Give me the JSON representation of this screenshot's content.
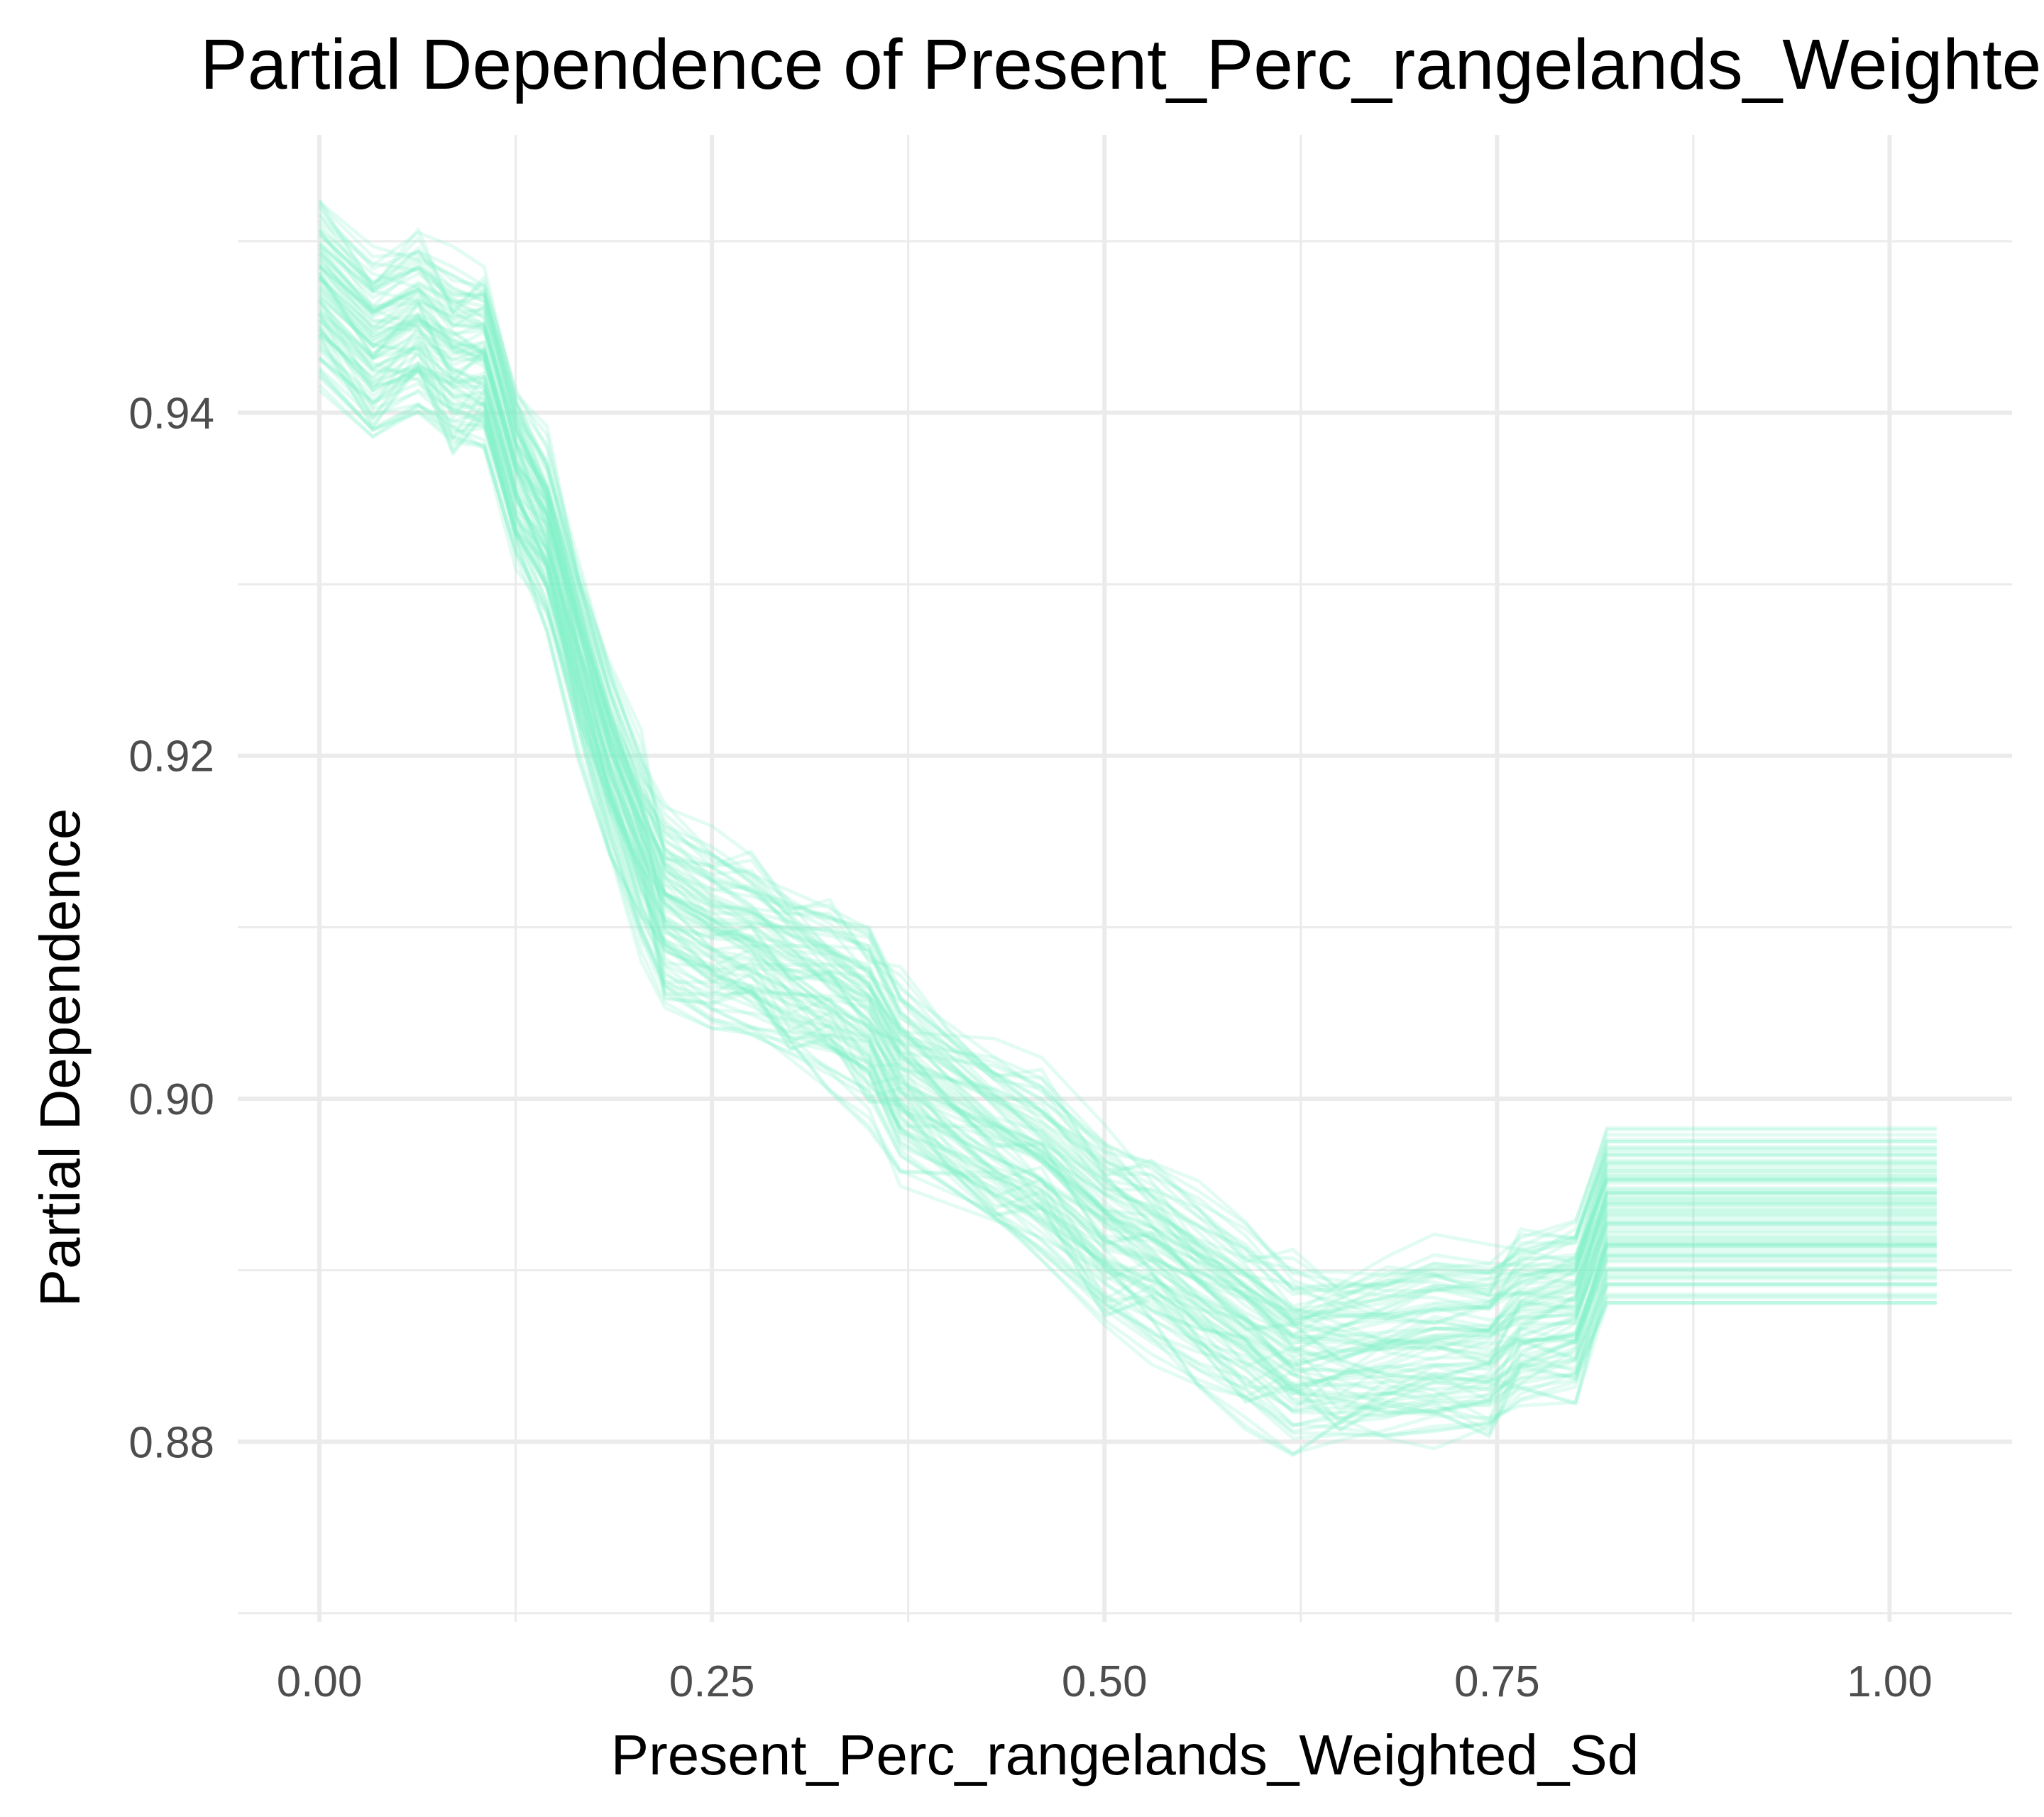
{
  "chart_data": {
    "type": "line",
    "title": "Partial Dependence of Present_Perc_rangelands_Weighted_Sd",
    "xlabel": "Present_Perc_rangelands_Weighted_Sd",
    "ylabel": "Partial Dependence",
    "xlim": [
      -0.052,
      1.078
    ],
    "ylim": [
      0.8695,
      0.9562
    ],
    "x_ticks": [
      "0.00",
      "0.25",
      "0.50",
      "0.75",
      "1.00"
    ],
    "x_tick_values": [
      0,
      0.25,
      0.5,
      0.75,
      1.0
    ],
    "y_ticks": [
      "0.88",
      "0.90",
      "0.92",
      "0.94"
    ],
    "y_tick_values": [
      0.88,
      0.9,
      0.92,
      0.94
    ],
    "grid": true,
    "line_color": "#7ff0c8",
    "line_opacity": 0.22,
    "n_curves": 90,
    "x": [
      0.0,
      0.034,
      0.063,
      0.085,
      0.105,
      0.125,
      0.145,
      0.165,
      0.185,
      0.205,
      0.22,
      0.25,
      0.275,
      0.3,
      0.325,
      0.35,
      0.37,
      0.4,
      0.43,
      0.46,
      0.5,
      0.53,
      0.56,
      0.59,
      0.62,
      0.65,
      0.68,
      0.71,
      0.745,
      0.765,
      0.8,
      0.82,
      1.03
    ],
    "mean_curve": [
      0.947,
      0.9435,
      0.9445,
      0.9428,
      0.9425,
      0.9365,
      0.933,
      0.9265,
      0.92,
      0.9145,
      0.911,
      0.909,
      0.9082,
      0.9072,
      0.9062,
      0.905,
      0.9015,
      0.8995,
      0.8975,
      0.8955,
      0.8925,
      0.891,
      0.889,
      0.8875,
      0.885,
      0.885,
      0.8848,
      0.8852,
      0.8855,
      0.887,
      0.888,
      0.893,
      0.893
    ],
    "curve_offsets": [
      -0.0045,
      -0.004,
      -0.0035,
      -0.003,
      -0.0025,
      -0.002,
      -0.0015,
      -0.001,
      -0.0005,
      0.0,
      0.0005,
      0.001,
      0.0015,
      0.002,
      0.0025,
      0.003,
      0.0035,
      0.004,
      0.0045,
      -0.0038,
      -0.0028,
      -0.0018,
      -0.0008,
      0.0002,
      0.0012,
      0.0022,
      0.0032,
      0.0042,
      -0.0042,
      -0.0032,
      -0.0022,
      -0.0012,
      -0.0002,
      0.0008,
      0.0018,
      0.0028,
      0.0038,
      -0.0044,
      -0.0034,
      -0.0024,
      -0.0014,
      -0.0004,
      0.0006,
      0.0016,
      0.0026,
      0.0036,
      0.0046,
      -0.0046,
      -0.0026,
      -0.0006,
      0.0014,
      0.0034,
      -0.0036,
      -0.0016,
      0.0004,
      0.0024,
      0.0044,
      -0.0041,
      -0.0021,
      -0.0001,
      0.0019,
      0.0039,
      -0.0031,
      -0.0011,
      0.0009,
      0.0029,
      0.0049,
      -0.0049,
      -0.0019,
      0.0011,
      0.0041,
      -0.0039,
      -0.0009,
      0.0021,
      -0.0029,
      0.0001,
      0.0031,
      -0.0033,
      0.0003,
      0.0033,
      -0.0023,
      0.0013,
      -0.0013,
      0.0023,
      -0.0003,
      0.0007,
      -0.0007,
      0.0017,
      -0.0017,
      0.0027
    ],
    "curve_patterns": [
      [
        0.002,
        0.003,
        0.001,
        0.0,
        -0.001,
        -0.002,
        -0.001,
        0.0,
        0.001,
        0.002,
        0.003,
        0.002,
        0.001,
        0.0,
        -0.001,
        -0.002,
        -0.003,
        -0.002,
        -0.001,
        0.0,
        0.001,
        0.002,
        0.003,
        0.002,
        0.001,
        0.0,
        -0.001,
        -0.002,
        -0.001,
        0.0,
        0.001,
        0.002,
        0.002
      ],
      [
        -0.002,
        -0.001,
        0.0,
        0.001,
        0.002,
        0.001,
        0.0,
        -0.001,
        -0.002,
        -0.003,
        -0.002,
        -0.001,
        0.0,
        0.001,
        0.002,
        0.003,
        0.002,
        0.001,
        0.0,
        -0.001,
        -0.002,
        -0.003,
        -0.002,
        -0.001,
        0.0,
        0.001,
        0.002,
        0.003,
        0.002,
        0.001,
        0.0,
        -0.001,
        -0.001
      ],
      [
        0.001,
        -0.001,
        0.002,
        -0.002,
        0.001,
        0.0,
        0.002,
        -0.001,
        0.001,
        0.003,
        -0.002,
        0.0,
        0.002,
        -0.001,
        0.001,
        -0.002,
        0.002,
        0.0,
        -0.001,
        0.002,
        -0.002,
        0.001,
        0.0,
        -0.002,
        0.002,
        -0.001,
        0.001,
        0.0,
        -0.002,
        0.001,
        -0.001,
        0.0,
        0.0
      ],
      [
        0.0,
        0.001,
        0.002,
        0.003,
        0.002,
        0.0,
        -0.002,
        -0.003,
        -0.002,
        0.0,
        0.002,
        0.003,
        0.002,
        0.0,
        -0.002,
        -0.003,
        -0.002,
        0.0,
        0.002,
        0.003,
        0.002,
        0.0,
        -0.002,
        -0.003,
        -0.002,
        0.0,
        0.002,
        0.003,
        0.002,
        0.0,
        -0.002,
        0.0,
        0.0
      ]
    ]
  }
}
